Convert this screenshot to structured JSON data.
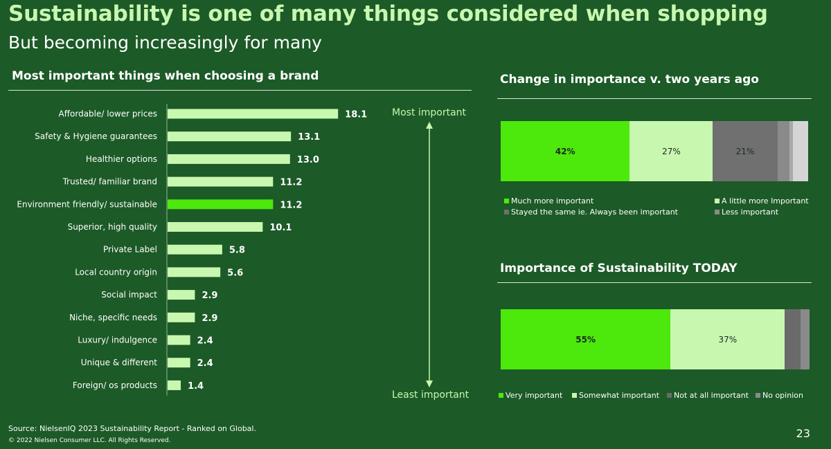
{
  "header": {
    "title": "Sustainability is one of many things considered when shopping",
    "subtitle": "But becoming increasingly for many"
  },
  "left": {
    "title": "Most important things when choosing a brand",
    "arrow_top": "Most important",
    "arrow_bottom": "Least important"
  },
  "chart_data": [
    {
      "type": "bar",
      "orientation": "horizontal",
      "title": "Most important things when choosing a brand",
      "categories": [
        "Affordable/ lower prices",
        "Safety & Hygiene guarantees",
        "Healthier options",
        "Trusted/ familiar brand",
        "Environment friendly/ sustainable",
        "Superior, high quality",
        "Private Label",
        "Local country origin",
        "Social impact",
        "Niche, specific needs",
        "Luxury/ indulgence",
        "Unique & different",
        "Foreign/ os products"
      ],
      "values": [
        18.1,
        13.1,
        13.0,
        11.2,
        11.2,
        10.1,
        5.8,
        5.6,
        2.9,
        2.9,
        2.4,
        2.4,
        1.4
      ],
      "value_labels": [
        "18.1",
        "13.1",
        "13.0",
        "11.2",
        "11.2",
        "10.1",
        "5.8",
        "5.6",
        "2.9",
        "2.9",
        "2.4",
        "2.4",
        "1.4"
      ],
      "highlight_index": 4,
      "colors": {
        "bar": "#c8f7b0",
        "highlight": "#4de80c"
      }
    },
    {
      "type": "bar",
      "stacked": true,
      "title": "Change in importance v. two years ago",
      "series": [
        {
          "name": "Much more important",
          "value": 42,
          "label": "42%",
          "color": "#4de80c"
        },
        {
          "name": "A little more Important",
          "value": 27,
          "label": "27%",
          "color": "#c8f7b0"
        },
        {
          "name": "Stayed the same ie. Always been important",
          "value": 21,
          "label": "21%",
          "color": "#707070"
        },
        {
          "name": "Less important",
          "value": 4,
          "label": "",
          "color": "#8a8a8a"
        },
        {
          "name": "",
          "value": 1,
          "label": "",
          "color": "#aaaaaa"
        },
        {
          "name": "",
          "value": 5,
          "label": "",
          "color": "#d5d5d5"
        }
      ]
    },
    {
      "type": "bar",
      "stacked": true,
      "title": "Importance of Sustainability TODAY",
      "series": [
        {
          "name": "Very important",
          "value": 55,
          "label": "55%",
          "color": "#4de80c"
        },
        {
          "name": "Somewhat important",
          "value": 37,
          "label": "37%",
          "color": "#c8f7b0"
        },
        {
          "name": "Not at all important",
          "value": 5,
          "label": "",
          "color": "#6a6a6a"
        },
        {
          "name": "No opinion",
          "value": 3,
          "label": "",
          "color": "#8a8a8a"
        }
      ]
    }
  ],
  "footer": {
    "source": "Source: NielsenIQ 2023 Sustainability Report - Ranked on Global.",
    "copyright": "© 2022 Nielsen Consumer LLC. All Rights Reserved.",
    "page": "23"
  }
}
